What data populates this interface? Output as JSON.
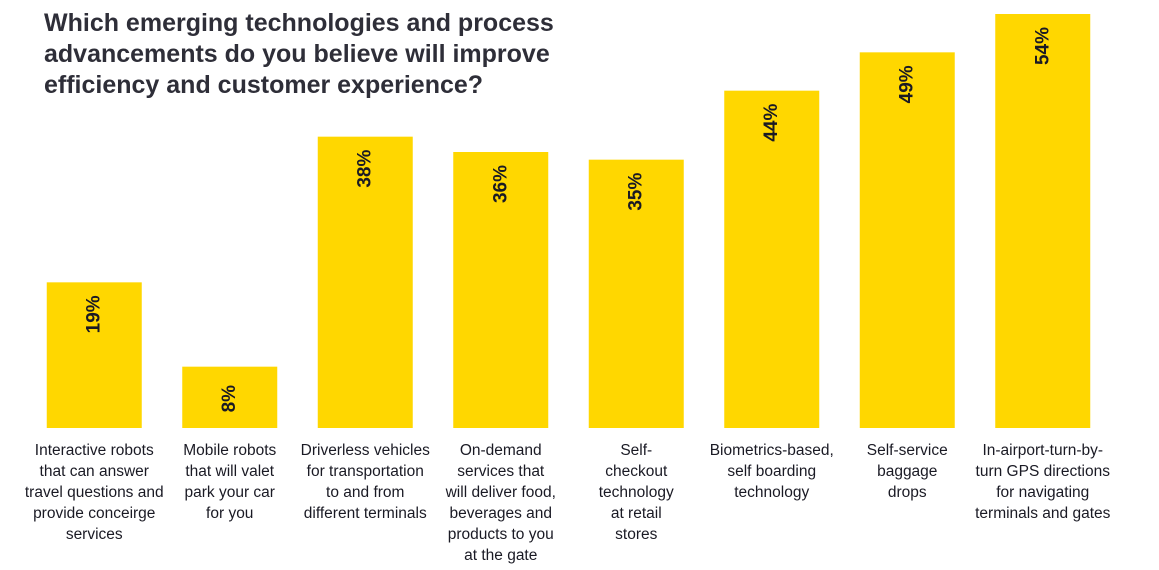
{
  "chart_data": {
    "type": "bar",
    "title": "Which emerging technologies and process advancements do you believe will improve efficiency and customer experience?",
    "categories": [
      "Interactive robots that can answer travel questions and provide conceirge services",
      "Mobile robots that will valet park your car for you",
      "Driverless vehicles for transportation to and from different terminals",
      "On-demand services that will deliver food, beverages and products to you at the gate",
      "Self-checkout technology at retail stores",
      "Biometrics-based, self boarding technology",
      "Self-service baggage drops",
      "In-airport-turn-by-turn GPS directions for navigating terminals and gates"
    ],
    "category_lines": [
      [
        "Interactive robots",
        "that can answer",
        "travel questions and",
        "provide conceirge",
        "services"
      ],
      [
        "Mobile robots",
        "that will valet",
        "park your car",
        "for you"
      ],
      [
        "Driverless vehicles",
        "for transportation",
        "to and from",
        "different terminals"
      ],
      [
        "On-demand",
        "services that",
        "will deliver food,",
        "beverages and",
        "products to you",
        "at the gate"
      ],
      [
        "Self-",
        "checkout",
        "technology",
        "at retail",
        "stores"
      ],
      [
        "Biometrics-based,",
        "self boarding",
        "technology"
      ],
      [
        "Self-service",
        "baggage",
        "drops"
      ],
      [
        "In-airport-turn-by-",
        "turn GPS directions",
        "for navigating",
        "terminals and gates"
      ]
    ],
    "values": [
      19,
      8,
      38,
      36,
      35,
      44,
      49,
      54
    ],
    "data_labels": [
      "19%",
      "8%",
      "38%",
      "36%",
      "35%",
      "44%",
      "49%",
      "54%"
    ],
    "xlabel": "",
    "ylabel": "",
    "ylim": [
      0,
      54
    ],
    "grid": false,
    "bar_color": "#FFD700"
  }
}
